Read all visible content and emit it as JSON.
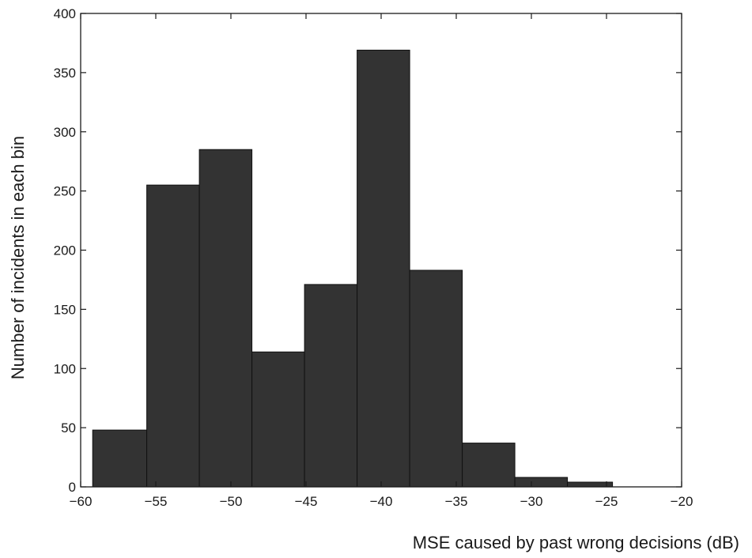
{
  "chart_data": {
    "type": "bar",
    "title": "",
    "xlabel": "MSE caused by past wrong decisions (dB)",
    "ylabel": "Number of incidents  in each bin",
    "xlim": [
      -60,
      -20
    ],
    "ylim": [
      0,
      400
    ],
    "xticks": [
      -60,
      -55,
      -50,
      -45,
      -40,
      -35,
      -30,
      -25,
      -20
    ],
    "yticks": [
      0,
      50,
      100,
      150,
      200,
      250,
      300,
      350,
      400
    ],
    "xtick_labels": [
      "−60",
      "−55",
      "−50",
      "−45",
      "−40",
      "−35",
      "−30",
      "−25",
      "−20"
    ],
    "ytick_labels": [
      "0",
      "50",
      "100",
      "150",
      "200",
      "250",
      "300",
      "350",
      "400"
    ],
    "bins": [
      {
        "x0": -59.2,
        "x1": -55.6,
        "value": 48
      },
      {
        "x0": -55.6,
        "x1": -52.1,
        "value": 255
      },
      {
        "x0": -52.1,
        "x1": -48.6,
        "value": 285
      },
      {
        "x0": -48.6,
        "x1": -45.1,
        "value": 114
      },
      {
        "x0": -45.1,
        "x1": -41.6,
        "value": 171
      },
      {
        "x0": -41.6,
        "x1": -38.1,
        "value": 369
      },
      {
        "x0": -38.1,
        "x1": -34.6,
        "value": 183
      },
      {
        "x0": -34.6,
        "x1": -31.1,
        "value": 37
      },
      {
        "x0": -31.1,
        "x1": -27.6,
        "value": 8
      },
      {
        "x0": -27.6,
        "x1": -24.6,
        "value": 4
      }
    ],
    "bar_color": "#333333",
    "edge_color": "#111111",
    "grid": false
  }
}
